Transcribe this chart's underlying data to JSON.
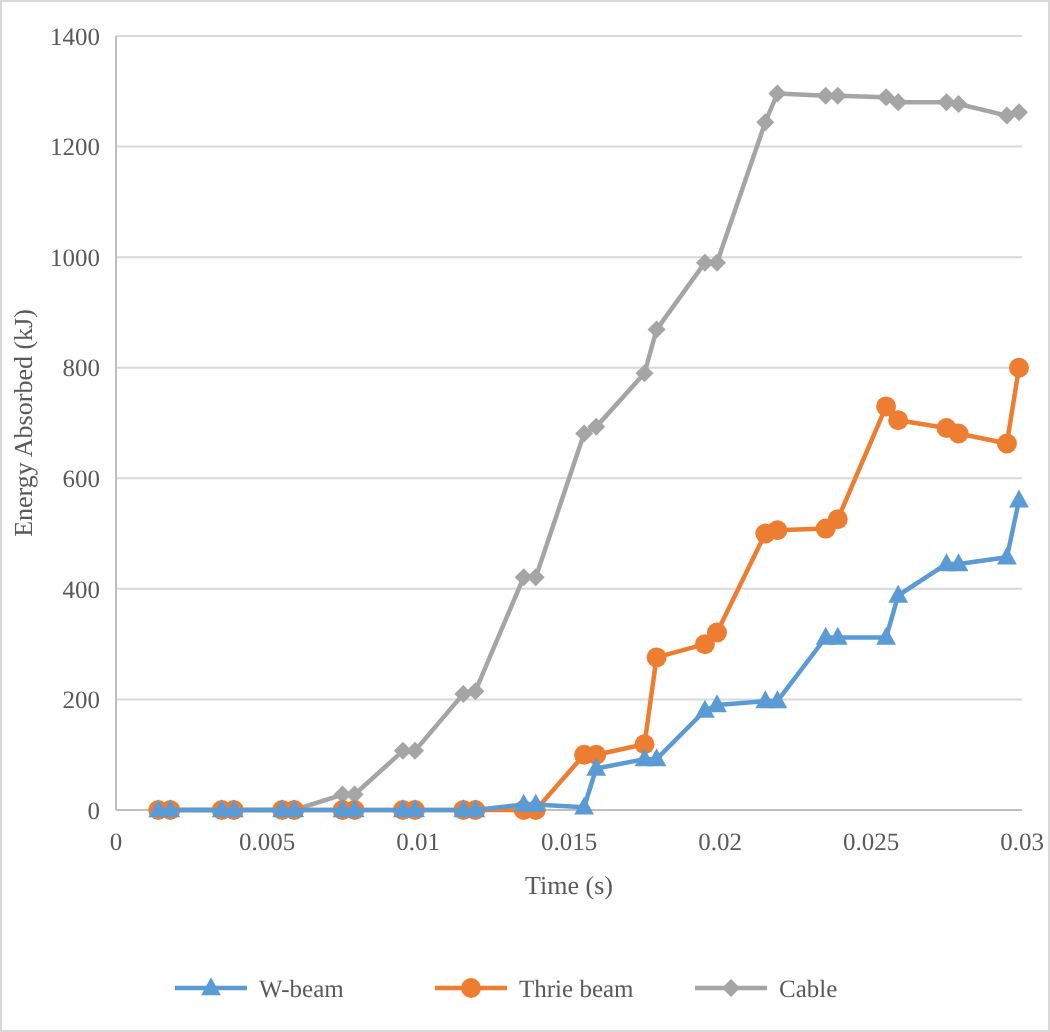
{
  "chart_data": {
    "type": "line",
    "xlabel": "Time (s)",
    "ylabel": "Energy Absorbed (kJ)",
    "x": [
      0.0014,
      0.0018,
      0.0035,
      0.0039,
      0.0055,
      0.0059,
      0.0075,
      0.0079,
      0.0095,
      0.0099,
      0.0115,
      0.0119,
      0.0135,
      0.0139,
      0.0155,
      0.0159,
      0.0175,
      0.0179,
      0.0195,
      0.0199,
      0.0215,
      0.0219,
      0.0235,
      0.0239,
      0.0255,
      0.0259,
      0.0275,
      0.0279,
      0.0295,
      0.0299
    ],
    "xlim": [
      0,
      0.03
    ],
    "xticks": [
      0,
      0.005,
      0.01,
      0.015,
      0.02,
      0.025,
      0.03
    ],
    "ylim": [
      0,
      1400
    ],
    "yticks": [
      0,
      200,
      400,
      600,
      800,
      1000,
      1200,
      1400
    ],
    "grid": "y",
    "legend": "bottom",
    "line_style": "solid",
    "series": [
      {
        "name": "W-beam",
        "color": "#5b9bd5",
        "marker": "triangle",
        "values": [
          0,
          0,
          0,
          0,
          0,
          0,
          0,
          0,
          0,
          0,
          0,
          0,
          10,
          10,
          5,
          75,
          92,
          92,
          180,
          190,
          197,
          197,
          312,
          312,
          312,
          388,
          445,
          445,
          457,
          560
        ]
      },
      {
        "name": "Thrie beam",
        "color": "#ed7d31",
        "marker": "circle",
        "values": [
          0,
          0,
          0,
          0,
          0,
          0,
          0,
          0,
          0,
          0,
          0,
          0,
          0,
          0,
          100,
          100,
          119,
          276,
          300,
          321,
          500,
          506,
          509,
          526,
          730,
          705,
          691,
          681,
          663,
          800
        ]
      },
      {
        "name": "Cable",
        "color": "#a5a5a5",
        "marker": "diamond",
        "values": [
          0,
          0,
          0,
          0,
          0,
          0,
          28,
          28,
          107,
          107,
          210,
          215,
          421,
          421,
          681,
          693,
          790,
          869,
          990,
          990,
          1244,
          1296,
          1292,
          1292,
          1289,
          1280,
          1280,
          1277,
          1256,
          1262
        ]
      }
    ]
  }
}
